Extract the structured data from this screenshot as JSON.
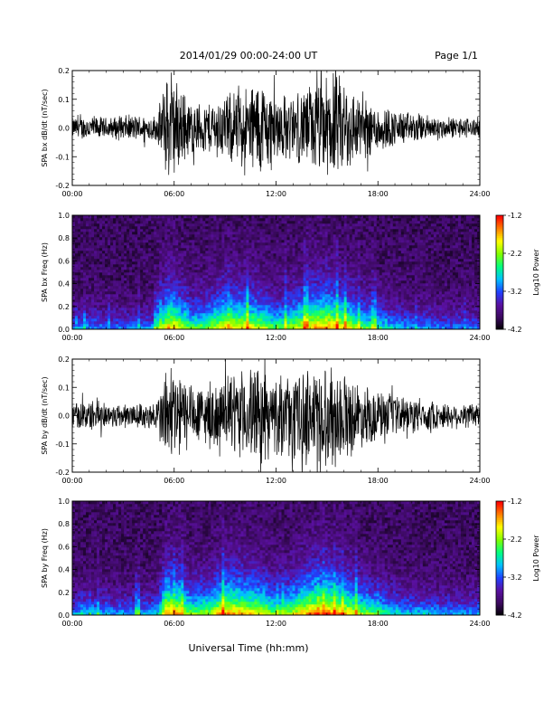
{
  "header": {
    "title": "2014/01/29  00:00-24:00 UT",
    "page": "Page 1/1"
  },
  "footer": {
    "xlabel": "Universal Time (hh:mm)"
  },
  "colors": {
    "trace": "#000000",
    "colormap": [
      "#000000",
      "#3b0a5e",
      "#5a10a0",
      "#2040ff",
      "#00c0ff",
      "#00ff80",
      "#80ff00",
      "#ffff00",
      "#ff8000",
      "#ff0000"
    ]
  },
  "chart_data": [
    {
      "id": "panel1",
      "type": "line",
      "ylabel": "SPA bx dB/dt (nT/sec)",
      "xlim": [
        0,
        24
      ],
      "ylim": [
        -0.2,
        0.2
      ],
      "xticks": [
        "00:00",
        "06:00",
        "12:00",
        "18:00",
        "24:00"
      ],
      "yticks": [
        "-0.2",
        "-0.1",
        "0.0",
        "0.1",
        "0.2"
      ],
      "envelope_hours": [
        0,
        1,
        2,
        3,
        4,
        5,
        5.5,
        6,
        7,
        8,
        9,
        10,
        11,
        12,
        13,
        14,
        15,
        16,
        17,
        18,
        19,
        20,
        21,
        22,
        23,
        24
      ],
      "envelope_amp": [
        0.04,
        0.05,
        0.04,
        0.05,
        0.05,
        0.05,
        0.2,
        0.2,
        0.1,
        0.1,
        0.13,
        0.15,
        0.2,
        0.14,
        0.12,
        0.17,
        0.2,
        0.2,
        0.12,
        0.1,
        0.07,
        0.06,
        0.05,
        0.04,
        0.04,
        0.04
      ]
    },
    {
      "id": "panel2",
      "type": "heatmap",
      "ylabel": "SPA bx Freq (Hz)",
      "xlim": [
        0,
        24
      ],
      "ylim": [
        0.0,
        1.0
      ],
      "xticks": [
        "00:00",
        "06:00",
        "12:00",
        "18:00",
        "24:00"
      ],
      "yticks": [
        "0.0",
        "0.2",
        "0.4",
        "0.6",
        "0.8",
        "1.0"
      ],
      "colorbar": {
        "label": "Log10 Power",
        "ticks": [
          "-1.2",
          "-2.2",
          "-3.2",
          "-4.2"
        ],
        "range": [
          -4.2,
          -1.2
        ]
      },
      "activity_hours": [
        0,
        1,
        2,
        3,
        4,
        5,
        5.5,
        6,
        7,
        8,
        9,
        10,
        11,
        12,
        13,
        14,
        15,
        16,
        17,
        18,
        19,
        20,
        21,
        22,
        23,
        24
      ],
      "activity": [
        0.3,
        0.35,
        0.3,
        0.3,
        0.3,
        0.35,
        0.8,
        0.8,
        0.55,
        0.6,
        0.8,
        0.75,
        0.7,
        0.55,
        0.65,
        0.8,
        0.85,
        0.75,
        0.6,
        0.5,
        0.4,
        0.35,
        0.35,
        0.3,
        0.3,
        0.3
      ]
    },
    {
      "id": "panel3",
      "type": "line",
      "ylabel": "SPA by dB/dt (nT/sec)",
      "xlim": [
        0,
        24
      ],
      "ylim": [
        -0.2,
        0.2
      ],
      "xticks": [
        "00:00",
        "06:00",
        "12:00",
        "18:00",
        "24:00"
      ],
      "yticks": [
        "-0.2",
        "-0.1",
        "0.0",
        "0.1",
        "0.2"
      ],
      "envelope_hours": [
        0,
        1,
        2,
        3,
        4,
        5,
        5.5,
        6,
        7,
        8,
        9,
        10,
        11,
        12,
        13,
        14,
        15,
        16,
        17,
        18,
        19,
        20,
        21,
        22,
        23,
        24
      ],
      "envelope_amp": [
        0.05,
        0.06,
        0.05,
        0.05,
        0.05,
        0.06,
        0.2,
        0.2,
        0.12,
        0.12,
        0.14,
        0.17,
        0.2,
        0.15,
        0.16,
        0.2,
        0.2,
        0.18,
        0.12,
        0.1,
        0.08,
        0.07,
        0.06,
        0.05,
        0.05,
        0.05
      ]
    },
    {
      "id": "panel4",
      "type": "heatmap",
      "ylabel": "SPA by Freq (Hz)",
      "xlim": [
        0,
        24
      ],
      "ylim": [
        0.0,
        1.0
      ],
      "xticks": [
        "00:00",
        "06:00",
        "12:00",
        "18:00",
        "24:00"
      ],
      "yticks": [
        "0.0",
        "0.2",
        "0.4",
        "0.6",
        "0.8",
        "1.0"
      ],
      "colorbar": {
        "label": "Log10 Power",
        "ticks": [
          "-1.2",
          "-2.2",
          "-3.2",
          "-4.2"
        ],
        "range": [
          -4.2,
          -1.2
        ]
      },
      "activity_hours": [
        0,
        1,
        2,
        3,
        4,
        5,
        5.5,
        6,
        7,
        8,
        9,
        10,
        11,
        12,
        13,
        14,
        15,
        16,
        17,
        18,
        19,
        20,
        21,
        22,
        23,
        24
      ],
      "activity": [
        0.35,
        0.4,
        0.35,
        0.35,
        0.35,
        0.4,
        0.85,
        0.85,
        0.6,
        0.65,
        0.85,
        0.8,
        0.75,
        0.6,
        0.7,
        0.85,
        0.9,
        0.8,
        0.65,
        0.55,
        0.45,
        0.4,
        0.4,
        0.35,
        0.35,
        0.35
      ]
    }
  ]
}
